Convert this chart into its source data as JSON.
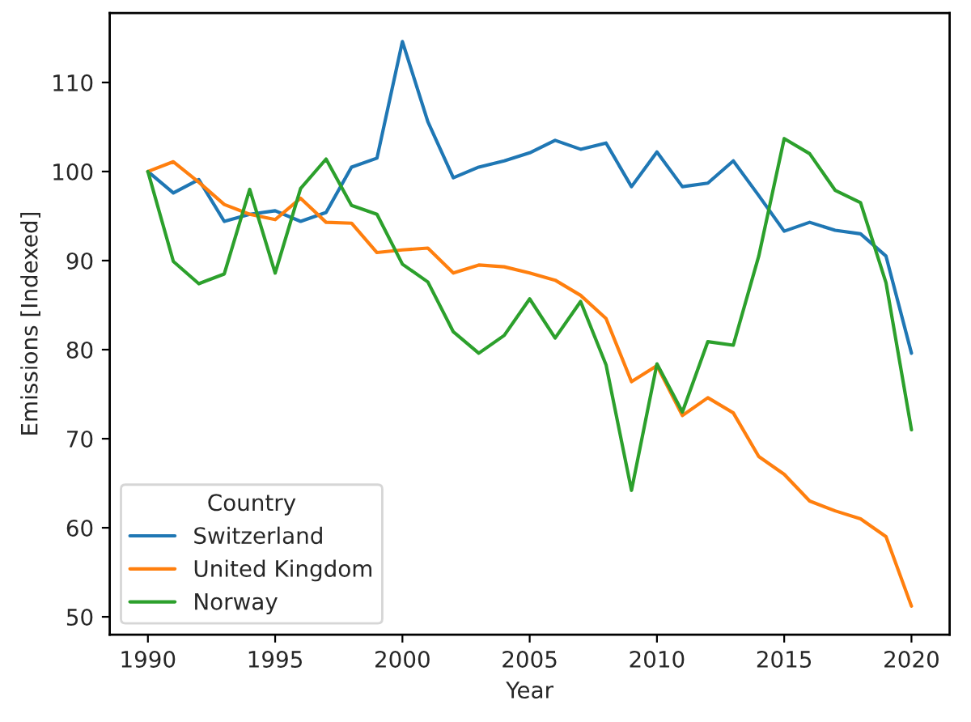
{
  "chart_data": {
    "type": "line",
    "xlabel": "Year",
    "ylabel": "Emissions [Indexed]",
    "legend_title": "Country",
    "x": [
      1990,
      1991,
      1992,
      1993,
      1994,
      1995,
      1996,
      1997,
      1998,
      1999,
      2000,
      2001,
      2002,
      2003,
      2004,
      2005,
      2006,
      2007,
      2008,
      2009,
      2010,
      2011,
      2012,
      2013,
      2014,
      2015,
      2016,
      2017,
      2018,
      2019,
      2020
    ],
    "series": [
      {
        "name": "Switzerland",
        "color": "#1f77b4",
        "values": [
          100,
          97.6,
          99.1,
          94.4,
          95.2,
          95.6,
          94.4,
          95.4,
          100.5,
          101.5,
          114.6,
          105.6,
          99.3,
          100.5,
          101.2,
          102.1,
          103.5,
          102.5,
          103.2,
          98.3,
          102.2,
          98.3,
          98.7,
          101.2,
          97.3,
          93.3,
          94.3,
          93.4,
          93.0,
          90.5,
          79.6
        ]
      },
      {
        "name": "United Kingdom",
        "color": "#ff7f0e",
        "values": [
          100,
          101.1,
          98.8,
          96.3,
          95.2,
          94.6,
          97.0,
          94.3,
          94.2,
          90.9,
          91.2,
          91.4,
          88.6,
          89.5,
          89.3,
          88.6,
          87.8,
          86.1,
          83.5,
          76.4,
          78.2,
          72.6,
          74.6,
          72.9,
          68.0,
          66.0,
          63.0,
          61.9,
          61.0,
          59.0,
          51.2
        ]
      },
      {
        "name": "Norway",
        "color": "#2ca02c",
        "values": [
          100,
          89.9,
          87.4,
          88.5,
          98.0,
          88.6,
          98.1,
          101.4,
          96.2,
          95.2,
          89.6,
          87.6,
          82.0,
          79.6,
          81.6,
          85.7,
          81.3,
          85.4,
          78.3,
          64.2,
          78.4,
          73.0,
          80.9,
          80.5,
          90.5,
          103.7,
          102.0,
          97.9,
          96.5,
          87.5,
          71.0
        ]
      }
    ],
    "xlim": [
      1988.5,
      2021.5
    ],
    "xticks": [
      1990,
      1995,
      2000,
      2005,
      2010,
      2015,
      2020
    ],
    "ylim": [
      48.0,
      117.8
    ],
    "yticks": [
      50,
      60,
      70,
      80,
      90,
      100,
      110
    ],
    "grid": false,
    "legend": "bottom left",
    "marker": "none",
    "line_style": "solid"
  }
}
